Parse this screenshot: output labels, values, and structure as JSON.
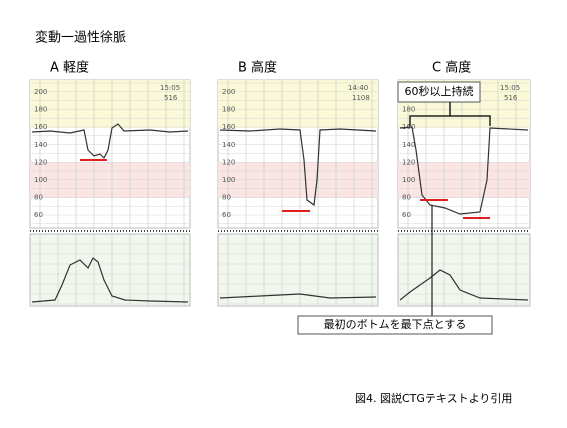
{
  "title": "変動一過性徐脈",
  "panels": [
    {
      "label": "A 軽度",
      "time": "15:05",
      "code": "516"
    },
    {
      "label": "B 高度",
      "time": "14:40",
      "code": "1108"
    },
    {
      "label": "C 高度",
      "time": "15:05",
      "code": "516"
    }
  ],
  "scale": [
    "200",
    "180",
    "160",
    "140",
    "120",
    "100",
    "80",
    "60"
  ],
  "annotations": {
    "duration": "60秒以上持続",
    "bottom": "最初のボトムを最下点とする"
  },
  "caption": "図4. 図説CTGテキストより引用"
}
